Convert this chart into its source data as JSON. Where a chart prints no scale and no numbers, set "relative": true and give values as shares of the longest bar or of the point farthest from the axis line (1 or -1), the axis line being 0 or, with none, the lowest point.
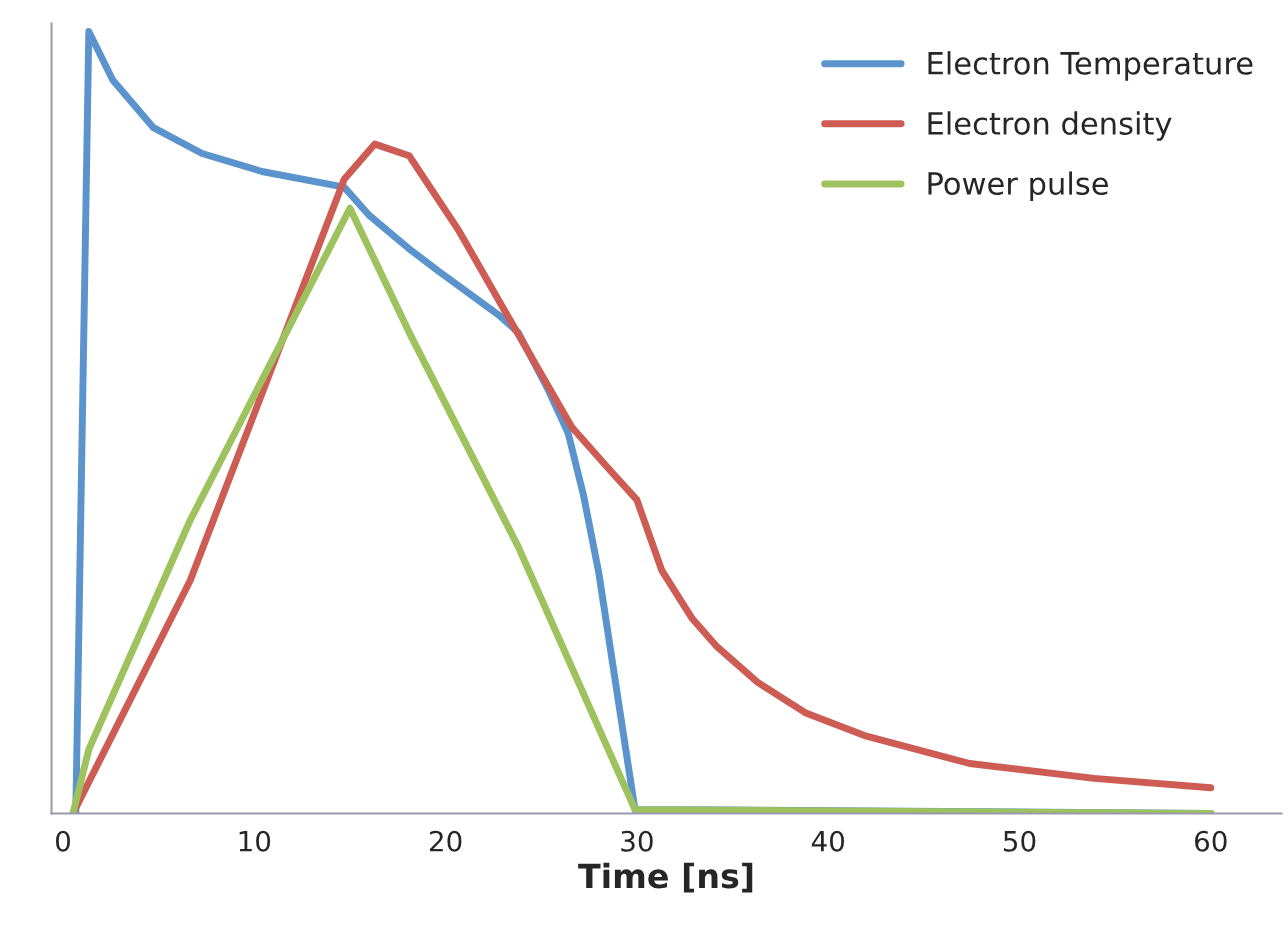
{
  "chart_data": {
    "type": "line",
    "xlabel": "Time [ns]",
    "relative": true,
    "xlim": [
      -0.6,
      63.7
    ],
    "xticks": [
      0,
      10,
      20,
      30,
      40,
      50,
      60
    ],
    "legend": "top right",
    "grid": false,
    "marker": "none",
    "line_style": "solid",
    "series": [
      {
        "name": "Electron Temperature",
        "color": "#5b93cd",
        "x": [
          0.67,
          1.35,
          2.6,
          4.73,
          7.27,
          10.4,
          14.7,
          16.0,
          18.1,
          19.6,
          22.8,
          23.8,
          25.3,
          26.4,
          27.2,
          28.0,
          29.9,
          33.1,
          60
        ],
        "values": [
          0,
          1.0,
          0.938,
          0.877,
          0.844,
          0.821,
          0.801,
          0.765,
          0.722,
          0.694,
          0.637,
          0.615,
          0.545,
          0.487,
          0.408,
          0.309,
          0.005,
          0.005,
          0
        ]
      },
      {
        "name": "Electron density",
        "color": "#cd5c55",
        "x": [
          0.52,
          6.65,
          14.7,
          16.3,
          18.1,
          20.7,
          23.7,
          26.6,
          28.7,
          30.0,
          31.3,
          32.9,
          34.2,
          36.3,
          38.8,
          42.0,
          47.4,
          53.9,
          60.0
        ],
        "values": [
          0,
          0.298,
          0.811,
          0.856,
          0.841,
          0.745,
          0.617,
          0.494,
          0.436,
          0.401,
          0.311,
          0.249,
          0.213,
          0.168,
          0.129,
          0.099,
          0.064,
          0.045,
          0.033
        ]
      },
      {
        "name": "Power pulse",
        "color": "#9dc25e",
        "x": [
          0.52,
          1.35,
          6.65,
          15.0,
          18.1,
          23.8,
          29.9,
          60
        ],
        "values": [
          0,
          0.082,
          0.375,
          0.774,
          0.615,
          0.341,
          0.005,
          0
        ]
      }
    ]
  }
}
